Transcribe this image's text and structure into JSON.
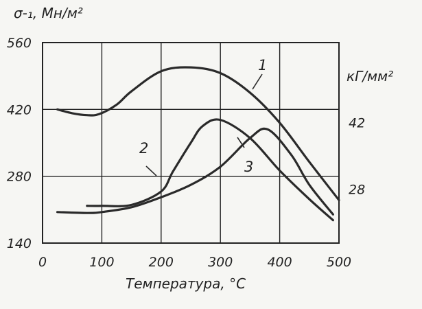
{
  "chart_data": {
    "type": "line",
    "xlabel": "Температура, °С",
    "ylabel": "σ-₁, Мн/м²",
    "ylabel_right": "кГ/мм²",
    "x_ticks": [
      "0",
      "100",
      "200",
      "300",
      "400",
      "500"
    ],
    "y_ticks": [
      "560",
      "420",
      "280",
      "140"
    ],
    "y_ticks_right": [
      "42",
      "28"
    ],
    "xlim": [
      0,
      500
    ],
    "ylim": [
      140,
      560
    ],
    "grid": true,
    "series": [
      {
        "name": "1",
        "x": [
          25,
          50,
          75,
          95,
          125,
          150,
          200,
          250,
          300,
          350,
          400,
          450,
          500
        ],
        "y": [
          420,
          412,
          408,
          410,
          430,
          458,
          500,
          508,
          496,
          455,
          392,
          310,
          230
        ]
      },
      {
        "name": "2",
        "x": [
          75,
          100,
          150,
          200,
          220,
          250,
          270,
          300,
          350,
          400,
          450,
          490
        ],
        "y": [
          218,
          218,
          220,
          248,
          290,
          350,
          385,
          398,
          360,
          292,
          232,
          188
        ]
      },
      {
        "name": "3",
        "x": [
          25,
          75,
          100,
          150,
          200,
          250,
          300,
          350,
          380,
          420,
          450,
          490
        ],
        "y": [
          205,
          203,
          205,
          215,
          236,
          262,
          300,
          360,
          378,
          324,
          262,
          200
        ]
      }
    ]
  }
}
